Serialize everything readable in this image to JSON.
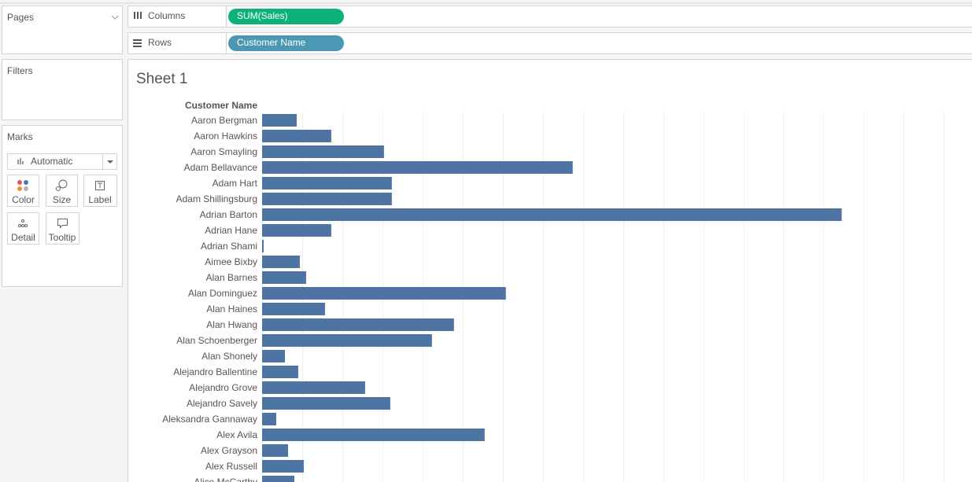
{
  "pages": "Pages",
  "shelves": {
    "columns": {
      "label": "Columns",
      "pill": "SUM(Sales)"
    },
    "rows": {
      "label": "Rows",
      "pill": "Customer Name"
    }
  },
  "filters": "Filters",
  "marks": {
    "title": "Marks",
    "mark_type": "Automatic",
    "cards": [
      "Color",
      "Size",
      "Label",
      "Detail",
      "Tooltip"
    ]
  },
  "chart_data": {
    "type": "bar",
    "orientation": "horizontal",
    "title": "Sheet 1",
    "y_label": "Customer Name",
    "categories": [
      "Aaron Bergman",
      "Aaron Hawkins",
      "Aaron Smayling",
      "Adam Bellavance",
      "Adam Hart",
      "Adam Shillingsburg",
      "Adrian Barton",
      "Adrian Hane",
      "Adrian Shami",
      "Aimee Bixby",
      "Alan Barnes",
      "Alan Dominguez",
      "Alan Haines",
      "Alan Hwang",
      "Alan Schoenberger",
      "Alan Shonely",
      "Alejandro Ballentine",
      "Alejandro Grove",
      "Alejandro Savely",
      "Aleksandra Gannaway",
      "Alex Avila",
      "Alex Grayson",
      "Alex Russell",
      "Alice McCarthy"
    ],
    "values": [
      863,
      1725,
      3039,
      7745,
      3235,
      3235,
      14451,
      1725,
      39,
      941,
      1098,
      6078,
      1569,
      4784,
      4235,
      569,
      902,
      2569,
      3196,
      353,
      5549,
      647,
      1039,
      804
    ],
    "color": "#4e74a4",
    "xlim": [
      0,
      17700
    ],
    "xticks": [
      0,
      1000,
      2000,
      3000,
      4000,
      5000,
      6000,
      7000,
      8000,
      9000,
      10000,
      11000,
      12000,
      13000,
      14000,
      15000,
      16000,
      17000
    ],
    "grid": true
  }
}
